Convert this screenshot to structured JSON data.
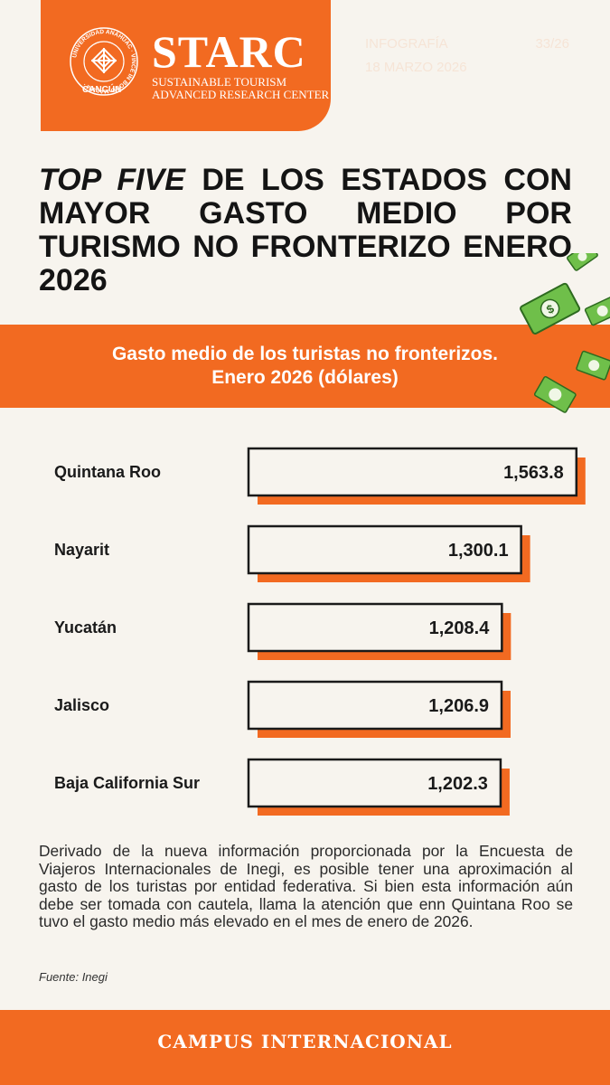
{
  "header": {
    "brand": "STARC",
    "brand_subtitle_1": "SUSTAINABLE TOURISM",
    "brand_subtitle_2": "ADVANCED RESEARCH CENTER",
    "university_text": "UNIVERSIDAD ANÁHUAC",
    "campus": "CANCÚN",
    "seal_motto": "VINCE IN BONO MALUM",
    "infographic_label": "INFOGRAFÍA",
    "infographic_number": "33/26",
    "date": "18 MARZO 2026"
  },
  "title": {
    "emphasis": "TOP FIVE",
    "rest": " DE LOS ESTADOS CON MAYOR GASTO MEDIO POR TURISMO NO FRONTERIZO ENERO 2026"
  },
  "banner": {
    "line1": "Gasto medio de los turistas no fronterizos.",
    "line2": "Enero 2026 (dólares)"
  },
  "chart_data": {
    "type": "bar",
    "orientation": "horizontal",
    "title": "Gasto medio de los turistas no fronterizos. Enero 2026 (dólares)",
    "categories": [
      "Quintana Roo",
      "Nayarit",
      "Yucatán",
      "Jalisco",
      "Baja California Sur"
    ],
    "values": [
      1563.8,
      1300.1,
      1208.4,
      1206.9,
      1202.3
    ],
    "labels": [
      "1,563.8",
      "1,300.1",
      "1,208.4",
      "1,206.9",
      "1,202.3"
    ],
    "colors": {
      "bar_fill": "#f7f4ee",
      "bar_border": "#1a1a1a",
      "shadow": "#f26a21"
    }
  },
  "description": "Derivado de la nueva información proporcionada por la Encuesta de Viajeros Internacionales de Inegi, es posible tener una aproximación al gasto de los turistas por entidad federativa. Si bien esta información aún debe ser tomada con cautela, llama la atención que enn Quintana Roo se tuvo el gasto medio más elevado en el mes de enero de 2026.",
  "source": "Fuente: Inegi",
  "footer": {
    "label": "CAMPUS INTERNACIONAL"
  },
  "colors": {
    "accent": "#f26a21",
    "background": "#f7f4ee",
    "text": "#141414",
    "money_green": "#6fbf4a"
  }
}
